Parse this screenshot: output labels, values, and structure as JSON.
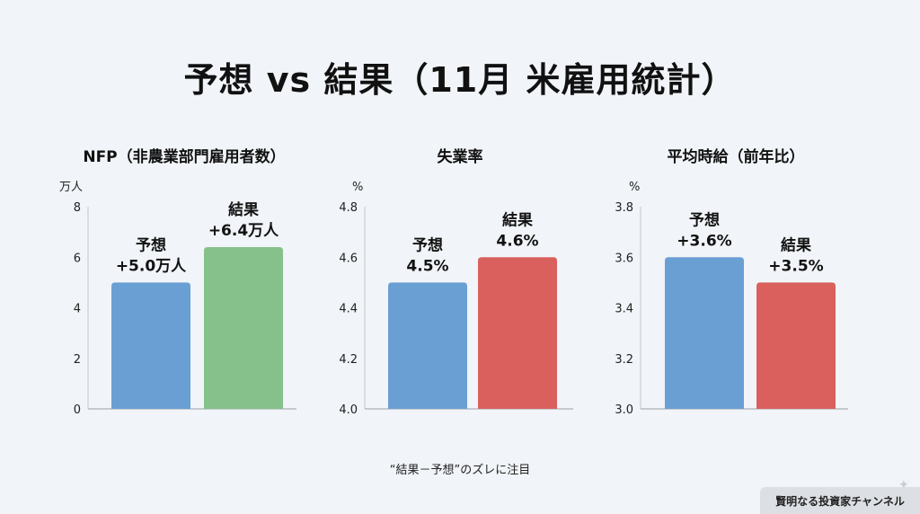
{
  "title": "予想 vs 結果（11月 米雇用統計）",
  "note": "“結果－予想”のズレに注目",
  "brand": "賢明なる投資家チャンネル",
  "chart_data": [
    {
      "type": "bar",
      "title": "NFP（非農業部門雇用者数）",
      "unit": "万人",
      "ylim": [
        0,
        8
      ],
      "yticks": [
        "0",
        "2",
        "4",
        "6",
        "8"
      ],
      "categories": [
        "予想",
        "結果"
      ],
      "values": [
        5.0,
        6.4
      ],
      "labels": [
        [
          "予想",
          "+5.0万人"
        ],
        [
          "結果",
          "+6.4万人"
        ]
      ],
      "colors": [
        "#6a9fd4",
        "#86c08a"
      ]
    },
    {
      "type": "bar",
      "title": "失業率",
      "unit": "%",
      "ylim": [
        4.0,
        4.8
      ],
      "yticks": [
        "4.0",
        "4.2",
        "4.4",
        "4.6",
        "4.8"
      ],
      "categories": [
        "予想",
        "結果"
      ],
      "values": [
        4.5,
        4.6
      ],
      "labels": [
        [
          "予想",
          "4.5%"
        ],
        [
          "結果",
          "4.6%"
        ]
      ],
      "colors": [
        "#6a9fd4",
        "#d9605c"
      ]
    },
    {
      "type": "bar",
      "title": "平均時給（前年比）",
      "unit": "%",
      "ylim": [
        3.0,
        3.8
      ],
      "yticks": [
        "3.0",
        "3.2",
        "3.4",
        "3.6",
        "3.8"
      ],
      "categories": [
        "予想",
        "結果"
      ],
      "values": [
        3.6,
        3.5
      ],
      "labels": [
        [
          "予想",
          "+3.6%"
        ],
        [
          "結果",
          "+3.5%"
        ]
      ],
      "colors": [
        "#6a9fd4",
        "#d9605c"
      ]
    }
  ]
}
